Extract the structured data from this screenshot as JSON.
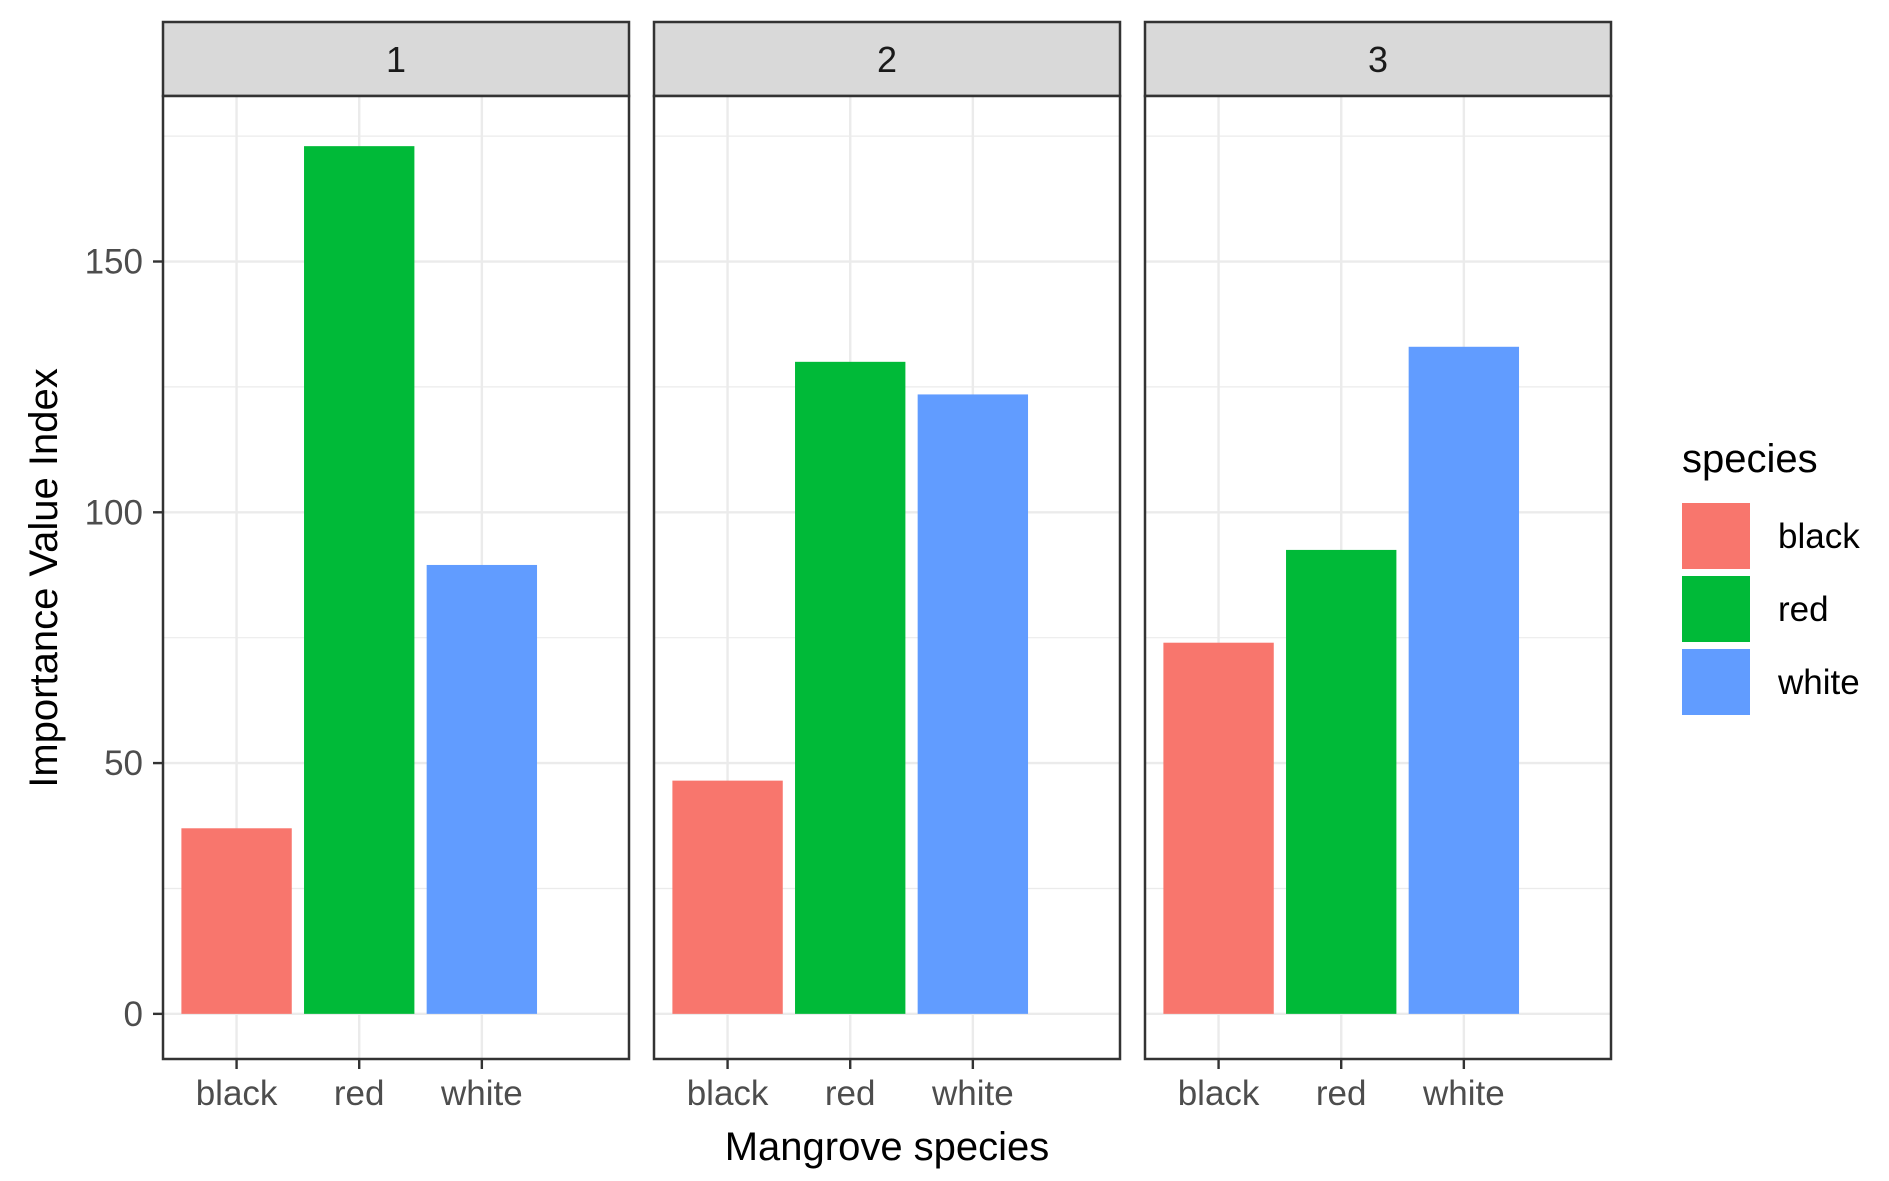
{
  "chart_data": {
    "type": "bar",
    "facet_variable": "",
    "facets": [
      {
        "label": "1",
        "categories": [
          "black",
          "red",
          "white"
        ],
        "values": [
          37,
          173,
          89.5
        ]
      },
      {
        "label": "2",
        "categories": [
          "black",
          "red",
          "white"
        ],
        "values": [
          46.5,
          130,
          123.5
        ]
      },
      {
        "label": "3",
        "categories": [
          "black",
          "red",
          "white"
        ],
        "values": [
          74,
          92.5,
          133
        ]
      }
    ],
    "xlabel": "Mangrove species",
    "ylabel": "Importance Value Index",
    "ylim": [
      -9,
      183
    ],
    "yticks": [
      0,
      50,
      100,
      150
    ],
    "grid": true,
    "legend": {
      "title": "species",
      "position": "right",
      "entries": [
        {
          "name": "black",
          "color": "#F8766D"
        },
        {
          "name": "red",
          "color": "#00BA38"
        },
        {
          "name": "white",
          "color": "#619CFF"
        }
      ]
    },
    "colors": {
      "black": "#F8766D",
      "red": "#00BA38",
      "white": "#619CFF"
    }
  }
}
